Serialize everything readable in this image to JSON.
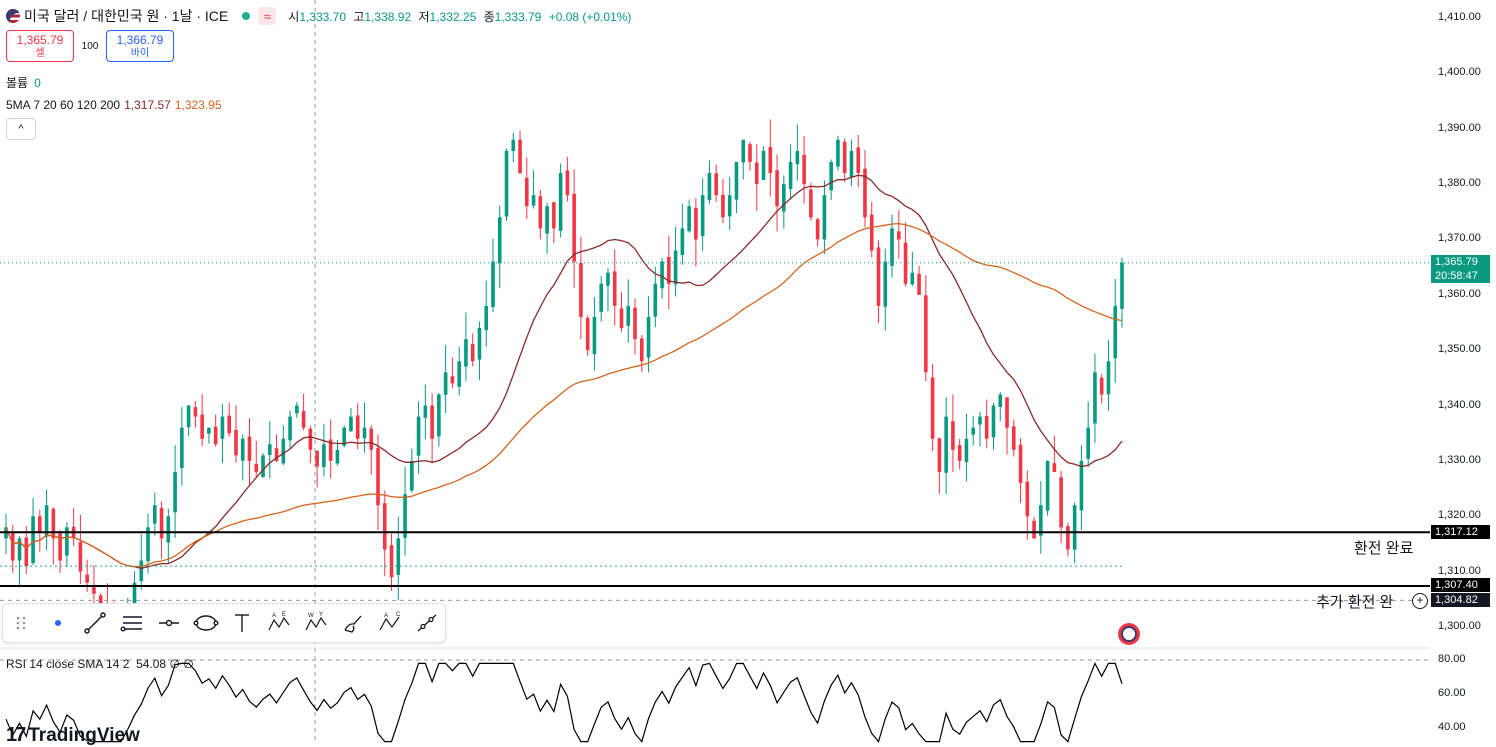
{
  "header": {
    "symbol_title": "미국 달러 / 대한민국 원 · 1날 · ICE",
    "wave_icon": "≈",
    "ohlc": {
      "o_label": "시",
      "o": "1,333.70",
      "h_label": "고",
      "h": "1,338.92",
      "l_label": "저",
      "l": "1,332.25",
      "c_label": "종",
      "c": "1,333.79",
      "change": "+0.08 (+0.01%)"
    }
  },
  "trade": {
    "sell_price": "1,365.79",
    "sell_label": "셀",
    "spread": "100",
    "buy_price": "1,366.79",
    "buy_label": "바이"
  },
  "volume": {
    "label": "볼륨",
    "value": "0"
  },
  "ma": {
    "label": "5MA 7 20 60 120 200",
    "v1": "1,317.57",
    "v2": "1,323.95"
  },
  "collapse_icon": "^",
  "rsi": {
    "label": "RSI 14 close SMA 14 2",
    "value": "54.08",
    "extra": "∅ ∅"
  },
  "logo": {
    "mark": "17",
    "text": "TradingView"
  },
  "annotations": {
    "line1_label": "환전 완료",
    "line2_label": "추가 환전 완",
    "line1_price": "1,317.12",
    "line2_price": "1,307.40",
    "low_price": "1,304.82"
  },
  "axis": {
    "price_ticks": [
      "1,410.00",
      "1,400.00",
      "1,390.00",
      "1,380.00",
      "1,370.00",
      "1,360.00",
      "1,350.00",
      "1,340.00",
      "1,330.00",
      "1,320.00",
      "1,310.00",
      "1,300.00"
    ],
    "rsi_ticks": [
      "80.00",
      "60.00",
      "40.00"
    ],
    "last_price": "1,365.79",
    "countdown": "20:58:47"
  },
  "colors": {
    "up": "#089981",
    "down": "#f23645",
    "ma1": "#8b2a2a",
    "ma2": "#d4641e",
    "last": "#089981"
  },
  "toolbar_icons": [
    "drag-handle-icon",
    "dot-icon",
    "trend-line-icon",
    "pitchfork-icon",
    "horizontal-ray-icon",
    "ellipse-icon",
    "text-icon",
    "xabcd-pattern-icon",
    "wxy-pattern-icon",
    "brush-icon",
    "abc-pattern-icon",
    "path-icon"
  ],
  "chart_data": {
    "type": "candlestick",
    "title": "미국 달러 / 대한민국 원 · 1날 · ICE",
    "ylim": [
      1296,
      1413
    ],
    "closes": [
      1318,
      1312,
      1316,
      1311,
      1320,
      1317,
      1322,
      1316,
      1312,
      1318,
      1316,
      1310,
      1308,
      1306,
      1304,
      1302,
      1300,
      1299,
      1303,
      1308,
      1312,
      1318,
      1322,
      1316,
      1320,
      1328,
      1336,
      1340,
      1338,
      1334,
      1336,
      1333,
      1338,
      1335,
      1331,
      1334,
      1330,
      1328,
      1331,
      1333,
      1330,
      1334,
      1338,
      1340,
      1336,
      1332,
      1329,
      1333,
      1330,
      1332,
      1336,
      1338,
      1334,
      1336,
      1332,
      1322,
      1314,
      1309,
      1316,
      1324,
      1330,
      1338,
      1340,
      1334,
      1342,
      1346,
      1344,
      1348,
      1352,
      1348,
      1354,
      1358,
      1366,
      1374,
      1386,
      1388,
      1382,
      1376,
      1378,
      1372,
      1376,
      1372,
      1382,
      1378,
      1366,
      1356,
      1350,
      1356,
      1362,
      1364,
      1358,
      1354,
      1358,
      1352,
      1348,
      1356,
      1362,
      1366,
      1362,
      1368,
      1372,
      1376,
      1370,
      1378,
      1382,
      1378,
      1374,
      1378,
      1384,
      1388,
      1384,
      1380,
      1386,
      1382,
      1376,
      1380,
      1384,
      1386,
      1380,
      1374,
      1370,
      1378,
      1384,
      1388,
      1382,
      1386,
      1382,
      1374,
      1368,
      1358,
      1366,
      1372,
      1370,
      1362,
      1364,
      1360,
      1346,
      1334,
      1328,
      1338,
      1332,
      1330,
      1334,
      1336,
      1338,
      1334,
      1340,
      1342,
      1336,
      1332,
      1326,
      1320,
      1316,
      1322,
      1330,
      1328,
      1318,
      1314,
      1322,
      1330,
      1336,
      1346,
      1342,
      1348,
      1358,
      1365.79
    ],
    "ma1": {
      "name": "SMA",
      "value": 1317.57
    },
    "ma2": {
      "name": "SMA",
      "value": 1323.95
    },
    "horizontal_lines": [
      {
        "price": 1317.12,
        "label": "환전 완료"
      },
      {
        "price": 1307.4,
        "label": "추가 환전 완"
      }
    ],
    "rsi": {
      "ylim": [
        30,
        85
      ],
      "last": 54.08
    }
  }
}
